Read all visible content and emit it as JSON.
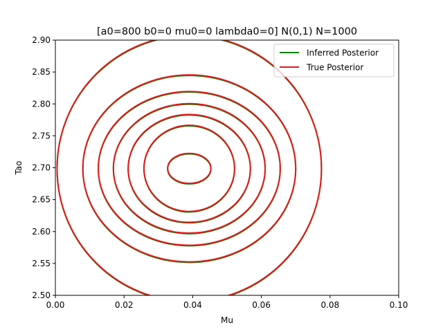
{
  "chart_data": {
    "type": "line",
    "title": "[a0=800 b0=0 mu0=0 lambda0=0] N(0,1) N=1000",
    "xlabel": "Mu",
    "ylabel": "Tao",
    "xlim": [
      0.0,
      0.1
    ],
    "ylim": [
      2.5,
      2.9
    ],
    "x_ticks": [
      "0.00",
      "0.02",
      "0.04",
      "0.06",
      "0.08",
      "0.10"
    ],
    "y_ticks": [
      "2.50",
      "2.55",
      "2.60",
      "2.65",
      "2.70",
      "2.75",
      "2.80",
      "2.85",
      "2.90"
    ],
    "x_tick_values": [
      0.0,
      0.02,
      0.04,
      0.06,
      0.08,
      0.1
    ],
    "y_tick_values": [
      2.5,
      2.55,
      2.6,
      2.65,
      2.7,
      2.75,
      2.8,
      2.85,
      2.9
    ],
    "grid": false,
    "legend_position": "top-right",
    "center": {
      "mu": 0.039,
      "tao": 2.699
    },
    "series": [
      {
        "name": "Inferred Posterior",
        "color": "#008000",
        "contours": [
          {
            "mu_radius": 0.0063,
            "tao_radius": 0.0235
          },
          {
            "mu_radius": 0.0132,
            "tao_radius": 0.0675
          },
          {
            "mu_radius": 0.0178,
            "tao_radius": 0.0845
          },
          {
            "mu_radius": 0.0221,
            "tao_radius": 0.1015
          },
          {
            "mu_radius": 0.0265,
            "tao_radius": 0.1205
          },
          {
            "mu_radius": 0.031,
            "tao_radius": 0.1465
          },
          {
            "mu_radius": 0.0385,
            "tao_radius": 0.2085
          }
        ]
      },
      {
        "name": "True Posterior",
        "color": "#e31a1c",
        "contours": [
          {
            "mu_radius": 0.0063,
            "tao_radius": 0.0235
          },
          {
            "mu_radius": 0.0132,
            "tao_radius": 0.0675
          },
          {
            "mu_radius": 0.0178,
            "tao_radius": 0.0845
          },
          {
            "mu_radius": 0.0221,
            "tao_radius": 0.1015
          },
          {
            "mu_radius": 0.0265,
            "tao_radius": 0.1205
          },
          {
            "mu_radius": 0.031,
            "tao_radius": 0.1465
          },
          {
            "mu_radius": 0.0385,
            "tao_radius": 0.2085
          }
        ]
      }
    ]
  }
}
